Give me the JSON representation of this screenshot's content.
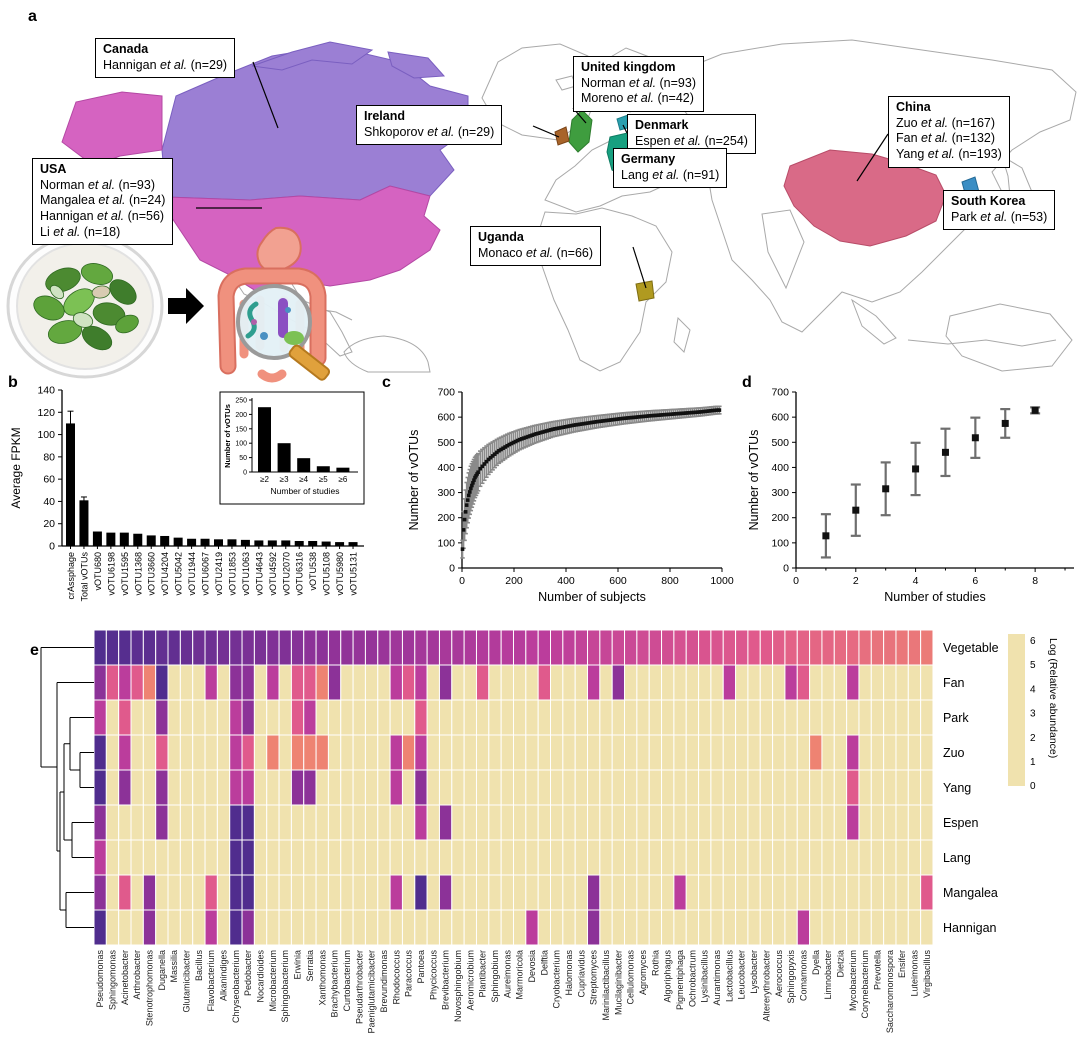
{
  "figure": {
    "labels": {
      "a": "a",
      "b": "b",
      "c": "c",
      "d": "d",
      "e": "e"
    }
  },
  "panel_a": {
    "countries": [
      {
        "id": "canada",
        "name": "Canada",
        "color": "#9b7fd4",
        "studies": [
          "Hannigan et al. (n=29)"
        ]
      },
      {
        "id": "usa",
        "name": "USA",
        "color": "#d563c1",
        "studies": [
          "Norman et al. (n=93)",
          "Mangalea et al. (n=24)",
          "Hannigan et al. (n=56)",
          "Li et al. (n=18)"
        ]
      },
      {
        "id": "ireland",
        "name": "Ireland",
        "color": "#a8642a",
        "studies": [
          "Shkoporov et al. (n=29)"
        ]
      },
      {
        "id": "uk",
        "name": "United kingdom",
        "color": "#3f9d3f",
        "studies": [
          "Norman et al. (n=93)",
          "Moreno et al. (n=42)"
        ]
      },
      {
        "id": "denmark",
        "name": "Denmark",
        "color": "#2a9fae",
        "studies": [
          "Espen et al. (n=254)"
        ]
      },
      {
        "id": "germany",
        "name": "Germany",
        "color": "#17a080",
        "studies": [
          "Lang et al. (n=91)"
        ]
      },
      {
        "id": "china",
        "name": "China",
        "color": "#d96a87",
        "studies": [
          "Zuo et al. (n=167)",
          "Fan et al. (n=132)",
          "Yang et al. (n=193)"
        ]
      },
      {
        "id": "southkorea",
        "name": "South Korea",
        "color": "#3b8ec4",
        "studies": [
          "Park et al. (n=53)"
        ]
      },
      {
        "id": "uganda",
        "name": "Uganda",
        "color": "#b09a20",
        "studies": [
          "Monaco et al. (n=66)"
        ]
      }
    ]
  },
  "chart_data": [
    {
      "id": "b",
      "type": "bar",
      "ylabel": "Average FPKM",
      "ylim": [
        0,
        140
      ],
      "yticks": [
        0,
        20,
        40,
        60,
        80,
        100,
        120,
        140
      ],
      "categories": [
        "crAssphage",
        "Total vOTUs",
        "vOTU680",
        "vOTU6198",
        "vOTU1595",
        "vOTU1368",
        "vOTU3660",
        "vOTU4204",
        "vOTU5042",
        "vOTU1944",
        "vOTU6067",
        "vOTU2419",
        "vOTU1853",
        "vOTU1063",
        "vOTU4643",
        "vOTU4592",
        "vOTU2070",
        "vOTU6316",
        "vOTU538",
        "vOTU5108",
        "vOTU5980",
        "vOTU5131"
      ],
      "values": [
        110,
        41,
        13,
        12,
        12,
        11,
        9.5,
        9,
        7.5,
        6.5,
        6.5,
        6,
        6,
        5.5,
        5,
        5,
        5,
        4.5,
        4.5,
        4,
        3.5,
        3.5
      ],
      "errors": [
        11,
        3,
        0,
        0,
        0,
        0,
        0,
        0,
        0,
        0,
        0,
        0,
        0,
        0,
        0,
        0,
        0,
        0,
        0,
        0,
        0,
        0
      ],
      "bar_color": "#000000",
      "inset": {
        "type": "bar",
        "ylabel": "Number of vOTUs",
        "xlabel": "Number of studies",
        "categories": [
          "≥2",
          "≥3",
          "≥4",
          "≥5",
          "≥6"
        ],
        "values": [
          225,
          100,
          48,
          20,
          15
        ],
        "ylim": [
          0,
          250
        ],
        "yticks": [
          0,
          50,
          100,
          150,
          200,
          250
        ]
      }
    },
    {
      "id": "c",
      "type": "line",
      "xlabel": "Number of subjects",
      "ylabel": "Number of vOTUs",
      "xlim": [
        0,
        1000
      ],
      "ylim": [
        0,
        700
      ],
      "xticks": [
        0,
        200,
        400,
        600,
        800,
        1000
      ],
      "yticks": [
        0,
        100,
        200,
        300,
        400,
        500,
        600,
        700
      ],
      "points": [
        [
          1,
          40,
          10
        ],
        [
          2,
          75,
          35
        ],
        [
          3,
          105,
          55
        ],
        [
          5,
          140,
          70
        ],
        [
          8,
          175,
          80
        ],
        [
          12,
          210,
          85
        ],
        [
          18,
          250,
          90
        ],
        [
          25,
          285,
          90
        ],
        [
          35,
          320,
          88
        ],
        [
          50,
          360,
          80
        ],
        [
          70,
          395,
          70
        ],
        [
          100,
          430,
          60
        ],
        [
          140,
          465,
          50
        ],
        [
          180,
          490,
          45
        ],
        [
          220,
          510,
          40
        ],
        [
          280,
          532,
          35
        ],
        [
          350,
          552,
          30
        ],
        [
          430,
          568,
          27
        ],
        [
          520,
          582,
          24
        ],
        [
          620,
          595,
          22
        ],
        [
          720,
          605,
          20
        ],
        [
          820,
          613,
          18
        ],
        [
          920,
          621,
          16
        ],
        [
          980,
          628,
          15
        ]
      ]
    },
    {
      "id": "d",
      "type": "scatter",
      "xlabel": "Number of studies",
      "ylabel": "Number of vOTUs",
      "xlim": [
        0,
        9.3
      ],
      "ylim": [
        0,
        700
      ],
      "xticks": [
        0,
        2,
        4,
        6,
        8
      ],
      "minor_xticks": [
        1,
        3,
        5,
        7,
        9
      ],
      "yticks": [
        0,
        100,
        200,
        300,
        400,
        500,
        600,
        700
      ],
      "points": [
        [
          1,
          128,
          86
        ],
        [
          2,
          230,
          102
        ],
        [
          3,
          315,
          105
        ],
        [
          4,
          394,
          104
        ],
        [
          5,
          460,
          94
        ],
        [
          6,
          518,
          80
        ],
        [
          7,
          575,
          57
        ],
        [
          8,
          627,
          12
        ]
      ]
    },
    {
      "id": "e",
      "type": "heatmap",
      "colorbar": {
        "label": "Log (Relative abundance)",
        "ticks": [
          6,
          5,
          4,
          3,
          2,
          1,
          0
        ],
        "stops": [
          "#f0e2ae",
          "#f3ae72",
          "#ee8372",
          "#e05a8c",
          "#bb3d9c",
          "#8c3298",
          "#502d8e"
        ]
      },
      "columns": [
        "Pseudomonas",
        "Sphingomonas",
        "Acinetobacter",
        "Arthrobacter",
        "Stenotrophomonas",
        "Duganella",
        "Massilia",
        "Glutamicibacter",
        "Bacillus",
        "Flavobacterium",
        "Alkanindiges",
        "Chryseobacterium",
        "Pedobacter",
        "Nocardioides",
        "Microbacterium",
        "Sphingobacterium",
        "Erwinia",
        "Serratia",
        "Xanthomonas",
        "Brachybacterium",
        "Curtobacterium",
        "Pseudarthrobacter",
        "Paeniglutamicibacter",
        "Brevundimonas",
        "Rhodococcus",
        "Paracoccus",
        "Pantoea",
        "Phycicoccus",
        "Brevibacterium",
        "Novosphingobium",
        "Aeromicrobium",
        "Plantibacter",
        "Sphingobium",
        "Aureimonas",
        "Marmoricola",
        "Devosia",
        "Delftia",
        "Cryobacterium",
        "Halomonas",
        "Cupriavidus",
        "Streptomyces",
        "Marinilactibacillus",
        "Mucilaginibacter",
        "Cellulomonas",
        "Agromyces",
        "Rothia",
        "Algoriphagus",
        "Pigmentiphaga",
        "Ochrobactrum",
        "Lysinibacillus",
        "Aurantimonas",
        "Lactobacillus",
        "Leucobacter",
        "Lysobacter",
        "Altererythrobacter",
        "Aerococcus",
        "Sphingopyxis",
        "Comamonas",
        "Dyella",
        "Limnobacter",
        "Dietzia",
        "Mycobacterium",
        "Corynebacterium",
        "Prevotella",
        "Saccharomonospora",
        "Ensifer",
        "Luteimonas",
        "Virgibacillus"
      ],
      "rows": [
        {
          "label": "Vegetable",
          "values": [
            6,
            5.9,
            5.9,
            5.8,
            5.8,
            5.7,
            5.7,
            5.6,
            5.5,
            5.5,
            5.4,
            5.4,
            5.3,
            5.3,
            5.2,
            5.2,
            5.1,
            5,
            5,
            4.9,
            4.9,
            4.8,
            4.8,
            4.7,
            4.6,
            4.6,
            4.5,
            4.5,
            4.4,
            4.4,
            4.3,
            4.2,
            4.2,
            4.1,
            4.1,
            4,
            4,
            3.9,
            3.9,
            3.8,
            3.7,
            3.7,
            3.6,
            3.6,
            3.5,
            3.5,
            3.4,
            3.3,
            3.3,
            3.2,
            3.2,
            3.1,
            3.1,
            3,
            3,
            2.9,
            2.8,
            2.8,
            2.7,
            2.7,
            2.6,
            2.6,
            2.5,
            2.4,
            2.4,
            2.3,
            2.3,
            2.2
          ]
        },
        {
          "label": "Fan",
          "sparse": {
            "0": 5,
            "1": 3,
            "2": 4,
            "3": 3,
            "4": 2,
            "5": 6,
            "9": 4,
            "11": 5,
            "12": 5,
            "14": 4,
            "16": 3,
            "17": 3,
            "18": 2,
            "19": 5,
            "24": 4,
            "25": 3,
            "26": 4,
            "28": 5,
            "31": 3,
            "36": 3,
            "40": 4,
            "42": 5,
            "51": 4,
            "56": 4,
            "57": 3,
            "61": 4
          }
        },
        {
          "label": "Park",
          "sparse": {
            "0": 4,
            "2": 3,
            "5": 5,
            "11": 4,
            "12": 5,
            "16": 3,
            "17": 4,
            "26": 3
          }
        },
        {
          "label": "Zuo",
          "sparse": {
            "0": 6,
            "2": 4,
            "5": 3,
            "11": 4,
            "12": 3,
            "14": 2,
            "16": 2,
            "17": 2,
            "18": 2,
            "24": 4,
            "25": 2,
            "26": 4,
            "58": 2,
            "61": 4
          }
        },
        {
          "label": "Yang",
          "sparse": {
            "0": 6,
            "2": 5,
            "5": 5,
            "11": 4,
            "12": 4,
            "16": 5,
            "17": 5,
            "24": 4,
            "26": 5,
            "61": 3
          }
        },
        {
          "label": "Espen",
          "sparse": {
            "0": 5,
            "5": 5,
            "11": 6,
            "12": 6,
            "26": 4,
            "28": 5,
            "61": 4
          }
        },
        {
          "label": "Lang",
          "sparse": {
            "0": 4,
            "11": 6,
            "12": 6
          }
        },
        {
          "label": "Mangalea",
          "sparse": {
            "0": 5,
            "2": 3,
            "4": 5,
            "9": 3,
            "11": 6,
            "12": 6,
            "24": 4,
            "26": 6,
            "28": 5,
            "40": 5,
            "47": 4,
            "67": 3
          }
        },
        {
          "label": "Hannigan",
          "sparse": {
            "0": 6,
            "4": 5,
            "9": 4,
            "11": 6,
            "12": 5,
            "35": 4,
            "40": 5,
            "57": 4
          }
        }
      ]
    }
  ]
}
